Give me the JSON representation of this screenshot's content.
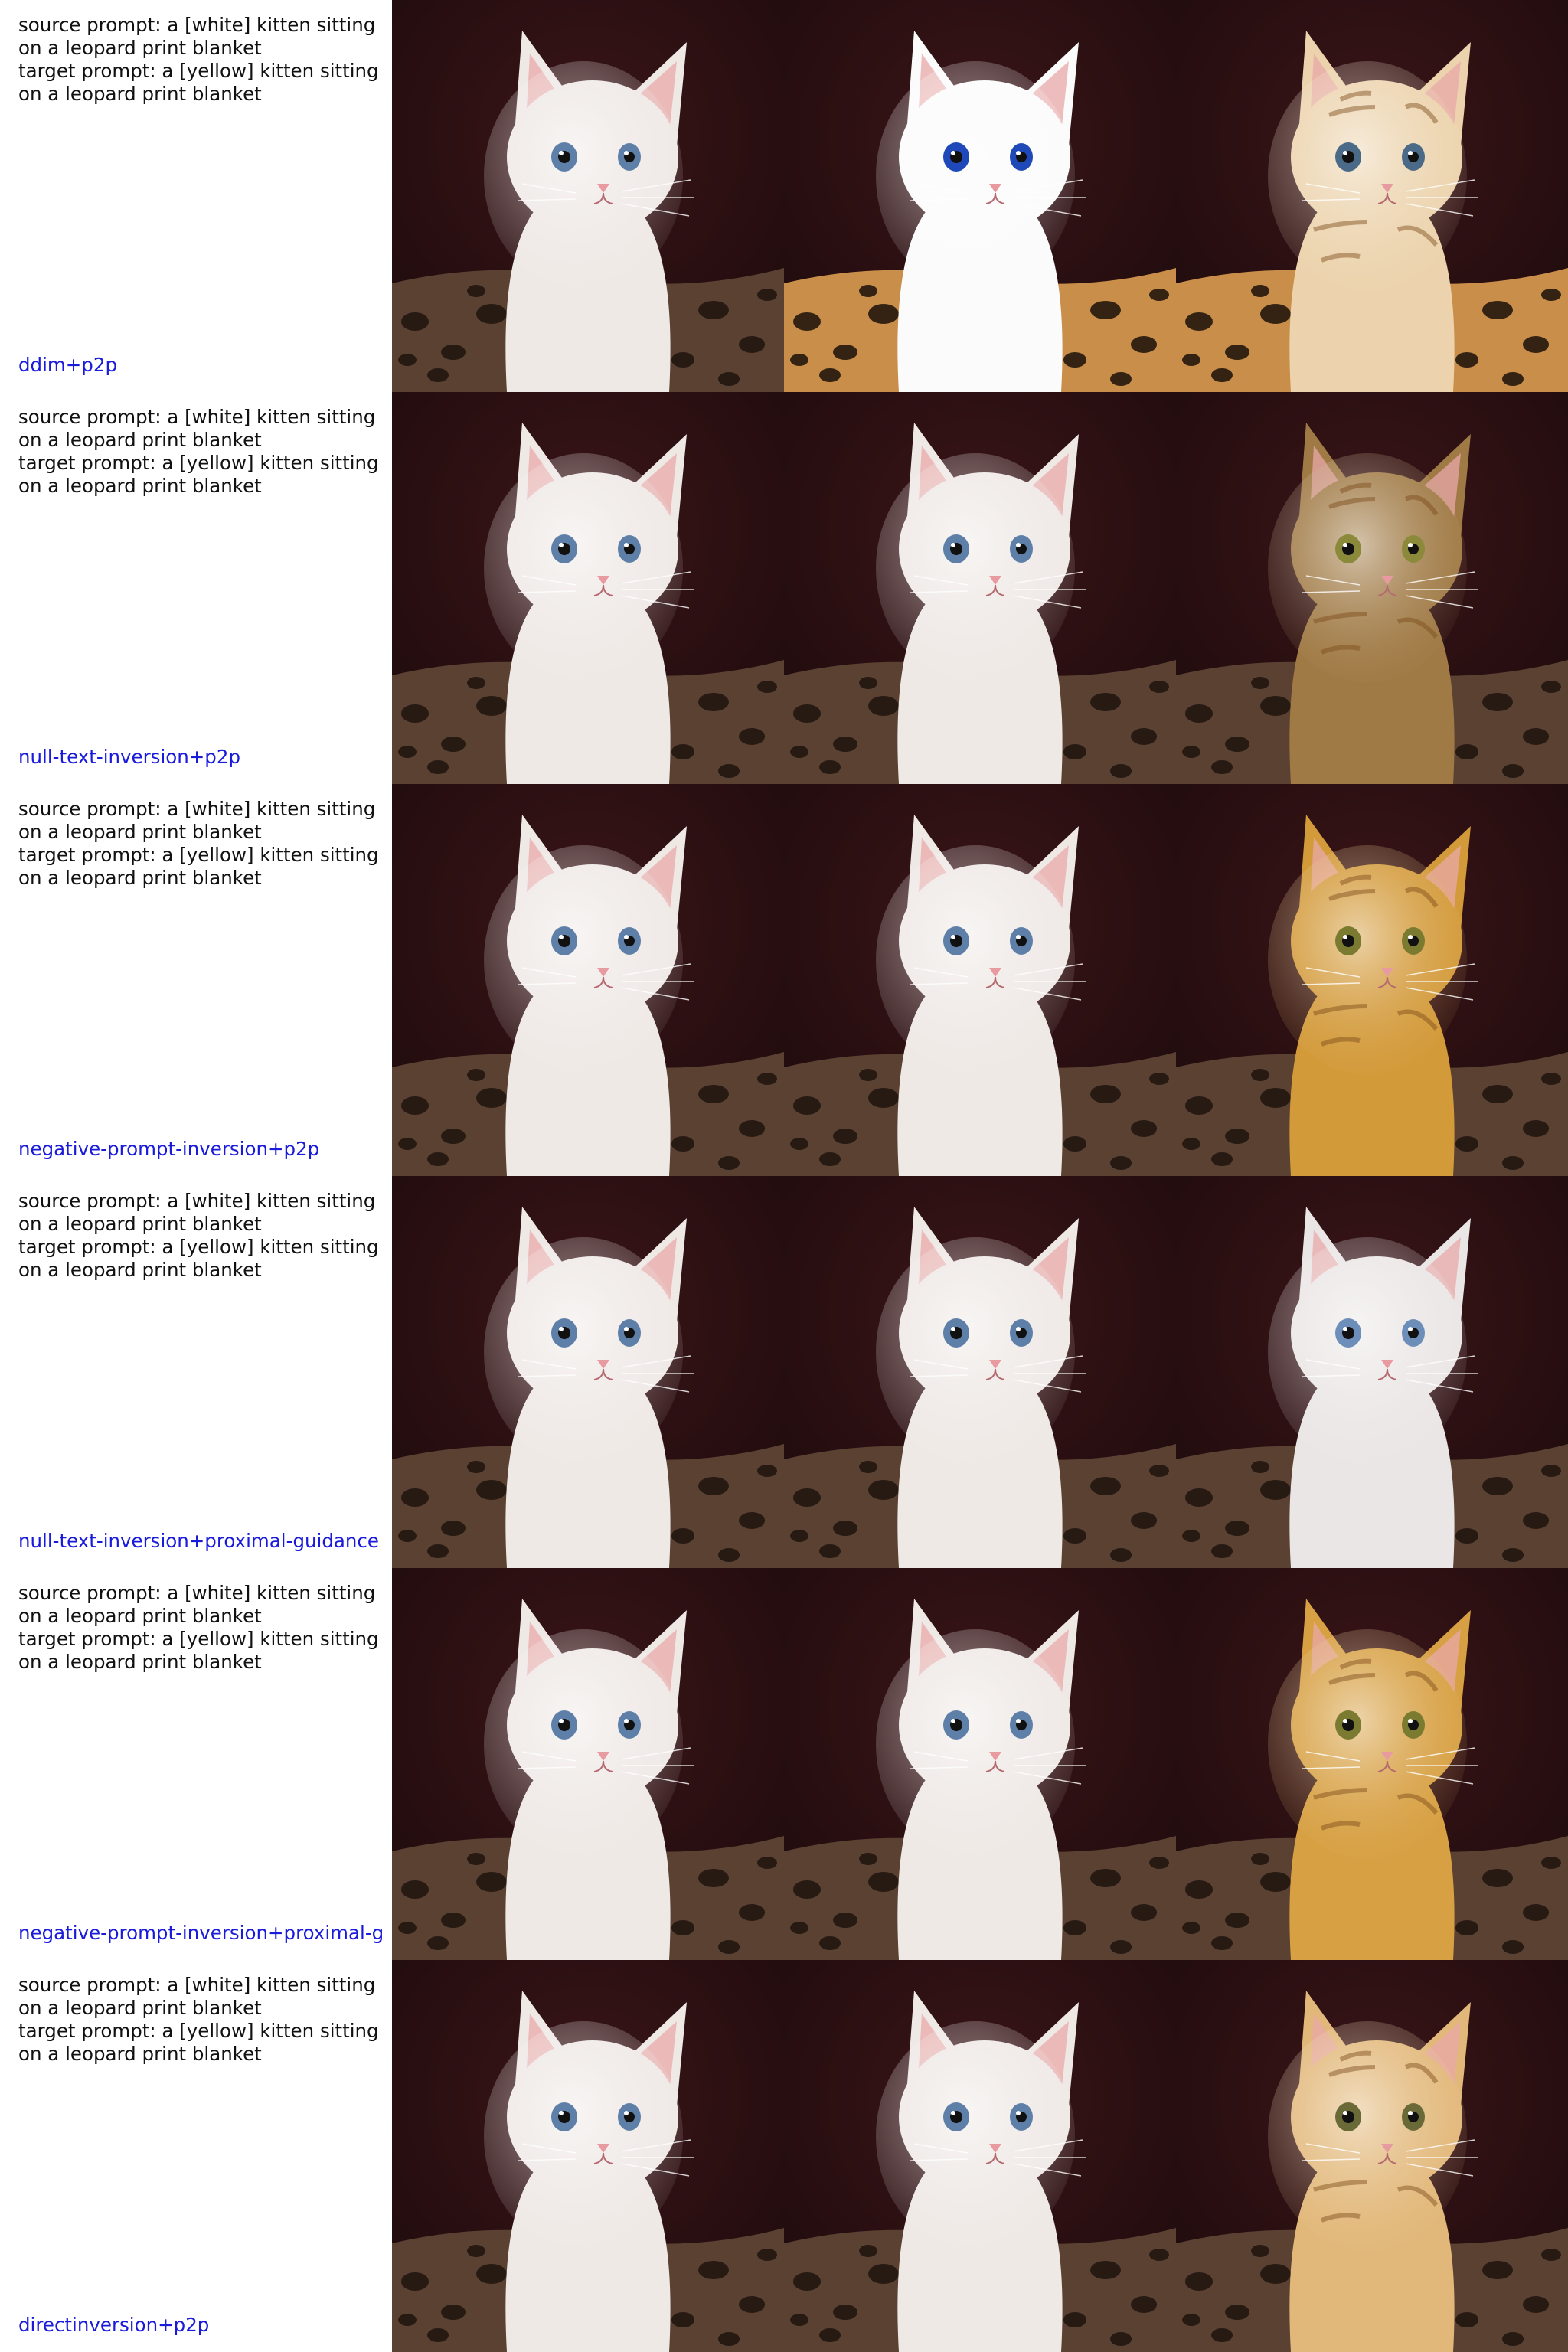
{
  "rows": [
    {
      "prompt_text": "source prompt: a [white] kitten sitting\non a leopard print blanket\ntarget prompt: a [yellow] kitten sitting\non a leopard print blanket",
      "method": "ddim+p2p",
      "images": [
        {
          "subject": "white-kitten",
          "fur": "#efe9e6",
          "eye": "#5d7fa8",
          "blanket": "#5a4132",
          "spot": "#1e140e"
        },
        {
          "subject": "white-kitten-blue-eyes",
          "fur": "#fbfbfb",
          "eye": "#1f48b8",
          "blanket": "#c98f4a",
          "spot": "#1a1008"
        },
        {
          "subject": "cream-kitten",
          "fur": "#ecd3ad",
          "eye": "#4a6a88",
          "blanket": "#c98f4a",
          "spot": "#1a1008"
        }
      ]
    },
    {
      "prompt_text": "source prompt: a [white] kitten sitting\non a leopard print blanket\ntarget prompt: a [yellow] kitten sitting\non a leopard print blanket",
      "method": "null-text-inversion+p2p",
      "images": [
        {
          "subject": "white-kitten",
          "fur": "#efe9e6",
          "eye": "#5d7fa8",
          "blanket": "#5a4132",
          "spot": "#1e140e"
        },
        {
          "subject": "white-kitten",
          "fur": "#efe9e6",
          "eye": "#5d7fa8",
          "blanket": "#5a4132",
          "spot": "#1e140e"
        },
        {
          "subject": "tabby-kitten",
          "fur": "#a07a45",
          "eye": "#8a8a3a",
          "blanket": "#5a4132",
          "spot": "#1e140e"
        }
      ]
    },
    {
      "prompt_text": "source prompt: a [white] kitten sitting\non a leopard print blanket\ntarget prompt: a [yellow] kitten sitting\non a leopard print blanket",
      "method": "negative-prompt-inversion+p2p",
      "images": [
        {
          "subject": "white-kitten",
          "fur": "#efe9e6",
          "eye": "#5d7fa8",
          "blanket": "#5a4132",
          "spot": "#1e140e"
        },
        {
          "subject": "white-kitten",
          "fur": "#efe9e6",
          "eye": "#5d7fa8",
          "blanket": "#5a4132",
          "spot": "#1e140e"
        },
        {
          "subject": "yellow-kitten",
          "fur": "#d39a3a",
          "eye": "#7a7a30",
          "blanket": "#5a4132",
          "spot": "#1e140e"
        }
      ]
    },
    {
      "prompt_text": "source prompt: a [white] kitten sitting\non a leopard print blanket\ntarget prompt: a [yellow] kitten sitting\non a leopard print blanket",
      "method": "null-text-inversion+proximal-guidance",
      "images": [
        {
          "subject": "white-kitten",
          "fur": "#efe9e6",
          "eye": "#5d7fa8",
          "blanket": "#5a4132",
          "spot": "#1e140e"
        },
        {
          "subject": "white-kitten",
          "fur": "#efe9e6",
          "eye": "#5d7fa8",
          "blanket": "#5a4132",
          "spot": "#1e140e"
        },
        {
          "subject": "white-kitten",
          "fur": "#ebe6e6",
          "eye": "#6c8eb8",
          "blanket": "#5a4132",
          "spot": "#1e140e"
        }
      ]
    },
    {
      "prompt_text": "source prompt: a [white] kitten sitting\non a leopard print blanket\ntarget prompt: a [yellow] kitten sitting\non a leopard print blanket",
      "method": "negative-prompt-inversion+proximal-g",
      "images": [
        {
          "subject": "white-kitten",
          "fur": "#efe9e6",
          "eye": "#5d7fa8",
          "blanket": "#5a4132",
          "spot": "#1e140e"
        },
        {
          "subject": "white-kitten",
          "fur": "#efe9e6",
          "eye": "#5d7fa8",
          "blanket": "#5a4132",
          "spot": "#1e140e"
        },
        {
          "subject": "yellow-kitten",
          "fur": "#d7a043",
          "eye": "#7a7a30",
          "blanket": "#5a4132",
          "spot": "#1e140e"
        }
      ]
    },
    {
      "prompt_text": "source prompt: a [white] kitten sitting\non a leopard print blanket\ntarget prompt: a [yellow] kitten sitting\non a leopard print blanket",
      "method": "directinversion+p2p",
      "images": [
        {
          "subject": "white-kitten",
          "fur": "#efe9e6",
          "eye": "#5d7fa8",
          "blanket": "#5a4132",
          "spot": "#1e140e"
        },
        {
          "subject": "white-kitten",
          "fur": "#efe9e6",
          "eye": "#5d7fa8",
          "blanket": "#5a4132",
          "spot": "#1e140e"
        },
        {
          "subject": "orange-tabby-kitten",
          "fur": "#e2b87a",
          "eye": "#6a6a38",
          "blanket": "#5a4132",
          "spot": "#1e140e"
        }
      ]
    }
  ],
  "background_color": "#1c0a0c"
}
